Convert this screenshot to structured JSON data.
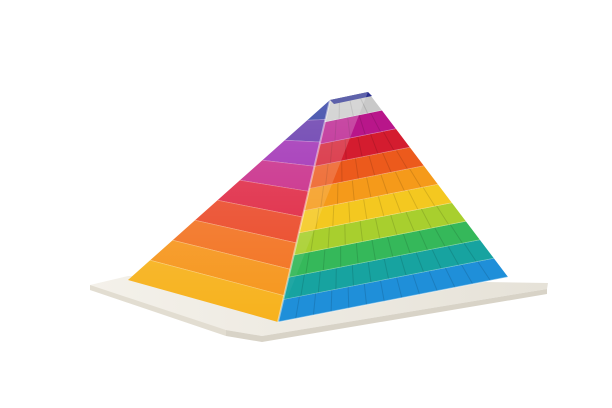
{
  "image": {
    "subject": "rainbow-pyramid",
    "background_color": "#ffffff",
    "base_color": "#eeeae0",
    "rainbow_colors": [
      "#e8212a",
      "#f26a1f",
      "#f7a21c",
      "#f6d021",
      "#7cc83a",
      "#19a98c",
      "#1f8fd9",
      "#2a3ea8",
      "#7a2ca8",
      "#c7239a"
    ],
    "front_face_colors": [
      "#c9c9c9",
      "#b8168a",
      "#d41c2f",
      "#ec5a1c",
      "#f59a1a",
      "#f4c820",
      "#a8cf2e",
      "#35b85a",
      "#17a3a0",
      "#1f8fd9"
    ],
    "left_face_colors": [
      "#1f2f9c",
      "#5a2aa6",
      "#9a22b0",
      "#c51f82",
      "#de1f3c",
      "#ea4422",
      "#f2701d",
      "#f6951b",
      "#f7b21d"
    ]
  }
}
